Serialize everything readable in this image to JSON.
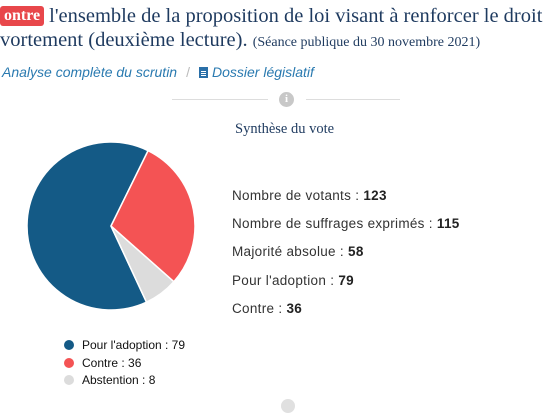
{
  "header": {
    "badge": "ontre",
    "title_line1": "l'ensemble de la proposition de loi visant à renforcer le droit",
    "title_line2": "vortement (deuxième lecture).",
    "session": "(Séance publique du 30 novembre 2021)"
  },
  "links": {
    "analysis": "Analyse complète du scrutin",
    "separator": "/",
    "dossier": "Dossier législatif",
    "dossier_icon": "document-icon"
  },
  "info_icon": "info-icon",
  "section_title": "Synthèse du vote",
  "stats": [
    {
      "label": "Nombre de votants :",
      "value": "123"
    },
    {
      "label": "Nombre de suffrages exprimés :",
      "value": "115"
    },
    {
      "label": "Majorité absolue :",
      "value": "58"
    },
    {
      "label": "Pour l'adoption :",
      "value": "79"
    },
    {
      "label": "Contre :",
      "value": "36"
    }
  ],
  "chart_data": {
    "type": "pie",
    "slices": [
      {
        "label": "Pour l'adoption",
        "value": 79,
        "color": "#145a86"
      },
      {
        "label": "Contre",
        "value": 36,
        "color": "#f45354"
      },
      {
        "label": "Abstention",
        "value": 8,
        "color": "#dcdcdc"
      }
    ]
  },
  "legend": [
    {
      "text": "Pour l'adoption : 79",
      "color": "#145a86"
    },
    {
      "text": "Contre : 36",
      "color": "#f45354"
    },
    {
      "text": "Abstention : 8",
      "color": "#dcdcdc"
    }
  ]
}
